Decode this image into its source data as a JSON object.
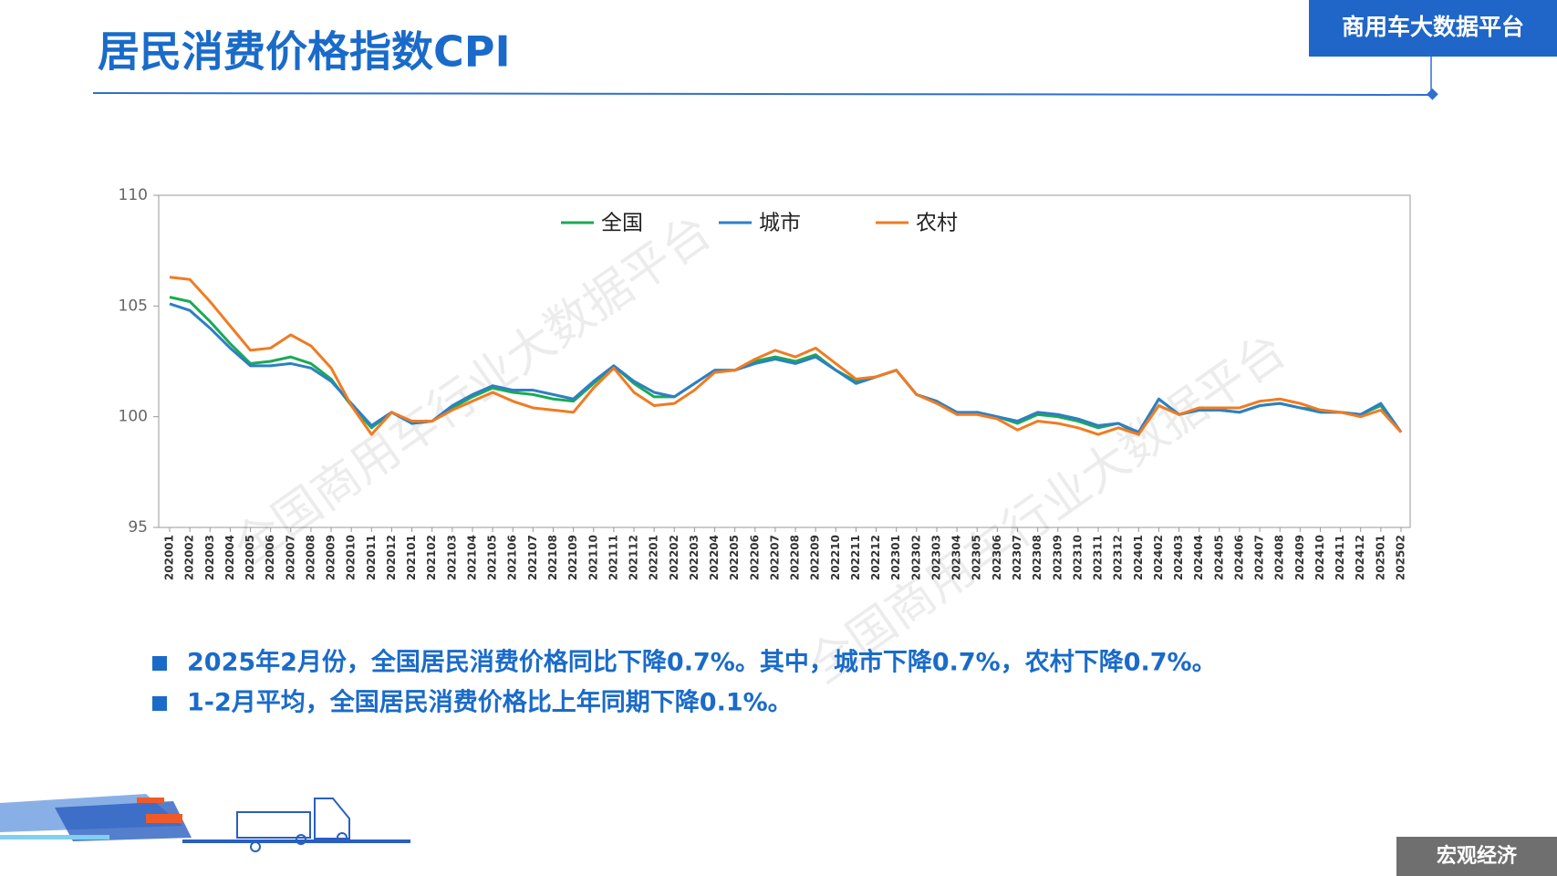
{
  "header": {
    "title": "居民消费价格指数CPI",
    "badge": "商用车大数据平台"
  },
  "chart_data": {
    "type": "line",
    "categories": [
      "202001",
      "202002",
      "202003",
      "202004",
      "202005",
      "202006",
      "202007",
      "202008",
      "202009",
      "202010",
      "202011",
      "202012",
      "202101",
      "202102",
      "202103",
      "202104",
      "202105",
      "202106",
      "202107",
      "202108",
      "202109",
      "202110",
      "202111",
      "202112",
      "202201",
      "202202",
      "202203",
      "202204",
      "202205",
      "202206",
      "202207",
      "202208",
      "202209",
      "202210",
      "202211",
      "202212",
      "202301",
      "202302",
      "202303",
      "202304",
      "202305",
      "202306",
      "202307",
      "202308",
      "202309",
      "202310",
      "202311",
      "202312",
      "202401",
      "202402",
      "202403",
      "202404",
      "202405",
      "202406",
      "202407",
      "202408",
      "202409",
      "202410",
      "202411",
      "202412",
      "202501",
      "202502"
    ],
    "series": [
      {
        "name": "全国",
        "color": "#1aaa55",
        "values": [
          105.4,
          105.2,
          104.3,
          103.3,
          102.4,
          102.5,
          102.7,
          102.4,
          101.7,
          100.5,
          99.5,
          100.2,
          99.7,
          99.8,
          100.4,
          100.9,
          101.3,
          101.1,
          101.0,
          100.8,
          100.7,
          101.5,
          102.3,
          101.5,
          100.9,
          100.9,
          101.5,
          102.1,
          102.1,
          102.5,
          102.7,
          102.5,
          102.8,
          102.1,
          101.6,
          101.8,
          102.1,
          101.0,
          100.7,
          100.1,
          100.2,
          100.0,
          99.7,
          100.1,
          100.0,
          99.8,
          99.5,
          99.7,
          99.2,
          100.8,
          100.1,
          100.3,
          100.3,
          100.2,
          100.5,
          100.6,
          100.4,
          100.3,
          100.2,
          100.1,
          100.5,
          99.3
        ]
      },
      {
        "name": "城市",
        "color": "#2e7fc4",
        "values": [
          105.1,
          104.8,
          104.0,
          103.1,
          102.3,
          102.3,
          102.4,
          102.2,
          101.6,
          100.6,
          99.6,
          100.2,
          99.7,
          99.8,
          100.5,
          101.0,
          101.4,
          101.2,
          101.2,
          101.0,
          100.8,
          101.6,
          102.3,
          101.6,
          101.1,
          100.9,
          101.5,
          102.1,
          102.1,
          102.4,
          102.6,
          102.4,
          102.7,
          102.1,
          101.5,
          101.8,
          102.1,
          101.0,
          100.7,
          100.2,
          100.2,
          100.0,
          99.8,
          100.2,
          100.1,
          99.9,
          99.6,
          99.7,
          99.3,
          100.8,
          100.1,
          100.3,
          100.3,
          100.2,
          100.5,
          100.6,
          100.4,
          100.2,
          100.2,
          100.1,
          100.6,
          99.3
        ]
      },
      {
        "name": "农村",
        "color": "#f07b22",
        "values": [
          106.3,
          106.2,
          105.2,
          104.1,
          103.0,
          103.1,
          103.7,
          103.2,
          102.2,
          100.5,
          99.2,
          100.2,
          99.8,
          99.8,
          100.3,
          100.7,
          101.1,
          100.7,
          100.4,
          100.3,
          100.2,
          101.3,
          102.2,
          101.1,
          100.5,
          100.6,
          101.2,
          102.0,
          102.1,
          102.6,
          103.0,
          102.7,
          103.1,
          102.4,
          101.7,
          101.8,
          102.1,
          101.0,
          100.6,
          100.1,
          100.1,
          99.9,
          99.4,
          99.8,
          99.7,
          99.5,
          99.2,
          99.5,
          99.2,
          100.5,
          100.1,
          100.4,
          100.4,
          100.4,
          100.7,
          100.8,
          100.6,
          100.3,
          100.2,
          100.0,
          100.3,
          99.3
        ]
      }
    ],
    "ylim": [
      95,
      110
    ],
    "yticks": [
      95,
      100,
      105,
      110
    ],
    "grid": false,
    "watermark": "全国商用车行业大数据平台"
  },
  "notes": [
    "2025年2月份，全国居民消费价格同比下降0.7%。其中，城市下降0.7%，农村下降0.7%。",
    "1-2月平均，全国居民消费价格比上年同期下降0.1%。"
  ],
  "footer": {
    "section": "宏观经济"
  }
}
